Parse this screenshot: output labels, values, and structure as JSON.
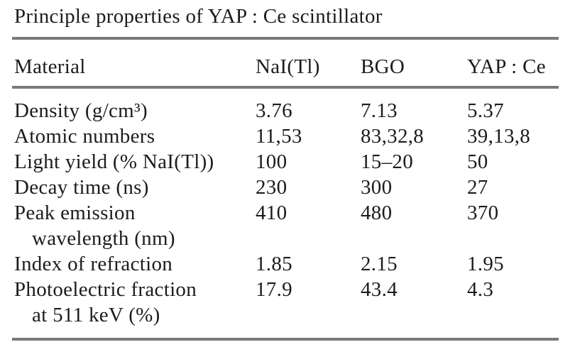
{
  "caption": "Principle properties of YAP : Ce scintillator",
  "colors": {
    "background": "#ffffff",
    "text": "#1c1c1c",
    "rule": "#7a7a7a"
  },
  "table": {
    "columns": [
      "Material",
      "NaI(Tl)",
      "BGO",
      "YAP : Ce"
    ],
    "rows": [
      {
        "label": "Density (g/cm³)",
        "label_line2": "",
        "values": [
          "3.76",
          "7.13",
          "5.37"
        ]
      },
      {
        "label": "Atomic numbers",
        "label_line2": "",
        "values": [
          "11,53",
          "83,32,8",
          "39,13,8"
        ]
      },
      {
        "label": "Light yield (% NaI(Tl))",
        "label_line2": "",
        "values": [
          "100",
          "15–20",
          "50"
        ]
      },
      {
        "label": "Decay time (ns)",
        "label_line2": "",
        "values": [
          "230",
          "300",
          "27"
        ]
      },
      {
        "label": "Peak emission",
        "label_line2": "wavelength (nm)",
        "values": [
          "410",
          "480",
          "370"
        ]
      },
      {
        "label": "Index of refraction",
        "label_line2": "",
        "values": [
          "1.85",
          "2.15",
          "1.95"
        ]
      },
      {
        "label": "Photoelectric fraction",
        "label_line2": "at 511 keV (%)",
        "values": [
          "17.9",
          "43.4",
          "4.3"
        ]
      }
    ]
  }
}
